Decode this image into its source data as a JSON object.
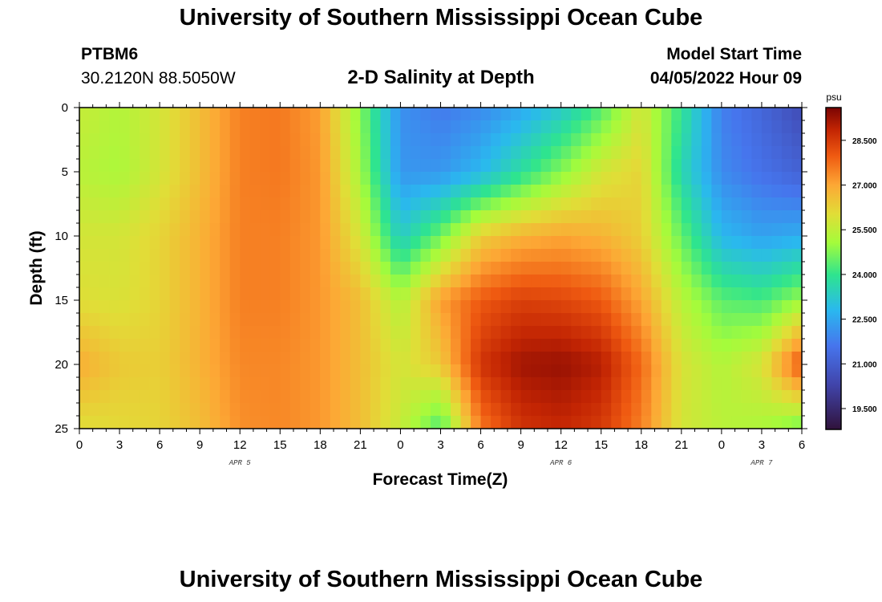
{
  "header": {
    "title": "University of Southern Mississippi Ocean Cube",
    "station_id": "PTBM6",
    "station_coords": "30.2120N  88.5050W",
    "subtitle": "2-D Salinity at Depth",
    "model_start_label": "Model Start Time",
    "model_start_value": "04/05/2022 Hour 09"
  },
  "footer": {
    "title": "University of Southern Mississippi Ocean Cube"
  },
  "chart_data": {
    "type": "heatmap",
    "title": "2-D Salinity at Depth",
    "xlabel": "Forecast Time(Z)",
    "ylabel": "Depth (ft)",
    "x_tick_labels": [
      "0",
      "3",
      "6",
      "9",
      "12",
      "15",
      "18",
      "21",
      "0",
      "3",
      "6",
      "9",
      "12",
      "15",
      "18",
      "21",
      "0",
      "3",
      "6"
    ],
    "x_range_hours": [
      0,
      54
    ],
    "date_labels": [
      {
        "label": "APR 5",
        "hour": 12
      },
      {
        "label": "APR 6",
        "hour": 36
      },
      {
        "label": "APR 7",
        "hour": 51
      }
    ],
    "y_ticks": [
      0,
      5,
      10,
      15,
      20,
      25
    ],
    "ylim": [
      0,
      25
    ],
    "y_inverted": true,
    "colorbar": {
      "unit": "psu",
      "min": 18.8,
      "max": 29.6,
      "tick_values": [
        19.5,
        21.0,
        22.5,
        24.0,
        25.5,
        27.0,
        28.5
      ],
      "tick_labels": [
        "19.500",
        "21.000",
        "22.500",
        "24.000",
        "25.500",
        "27.000",
        "28.500"
      ]
    },
    "depths_ft": [
      0,
      5,
      10,
      15,
      20,
      25
    ],
    "times_hr": [
      0,
      3,
      6,
      9,
      12,
      15,
      18,
      21,
      24,
      27,
      30,
      33,
      36,
      39,
      42,
      45,
      48,
      51,
      54
    ],
    "salinity_psu": [
      [
        25.6,
        25.3,
        25.8,
        26.6,
        27.5,
        27.6,
        27.1,
        24.8,
        22.1,
        21.7,
        22.0,
        22.5,
        23.2,
        24.3,
        25.8,
        24.0,
        21.8,
        21.2,
        20.5
      ],
      [
        25.4,
        25.2,
        25.8,
        26.6,
        27.5,
        27.6,
        27.2,
        25.1,
        22.2,
        22.2,
        22.8,
        23.8,
        24.8,
        25.8,
        26.2,
        23.6,
        22.0,
        21.5,
        21.1
      ],
      [
        25.8,
        25.8,
        26.2,
        26.8,
        27.5,
        27.5,
        27.2,
        25.8,
        23.3,
        24.6,
        26.3,
        26.8,
        27.0,
        26.8,
        26.3,
        24.5,
        22.8,
        22.4,
        22.6
      ],
      [
        26.0,
        25.9,
        26.2,
        26.8,
        27.5,
        27.5,
        27.2,
        26.6,
        25.3,
        27.1,
        28.0,
        28.4,
        28.3,
        28.0,
        27.0,
        25.4,
        24.4,
        24.2,
        25.0
      ],
      [
        26.9,
        26.4,
        26.3,
        26.8,
        27.4,
        27.4,
        27.2,
        26.6,
        25.8,
        26.4,
        28.6,
        29.2,
        29.3,
        29.0,
        27.8,
        25.9,
        25.3,
        25.9,
        28.2
      ],
      [
        26.0,
        26.1,
        26.2,
        26.6,
        27.3,
        27.4,
        27.2,
        26.6,
        25.6,
        24.2,
        27.6,
        28.6,
        28.8,
        28.5,
        27.5,
        25.8,
        25.4,
        25.2,
        24.5
      ]
    ]
  }
}
